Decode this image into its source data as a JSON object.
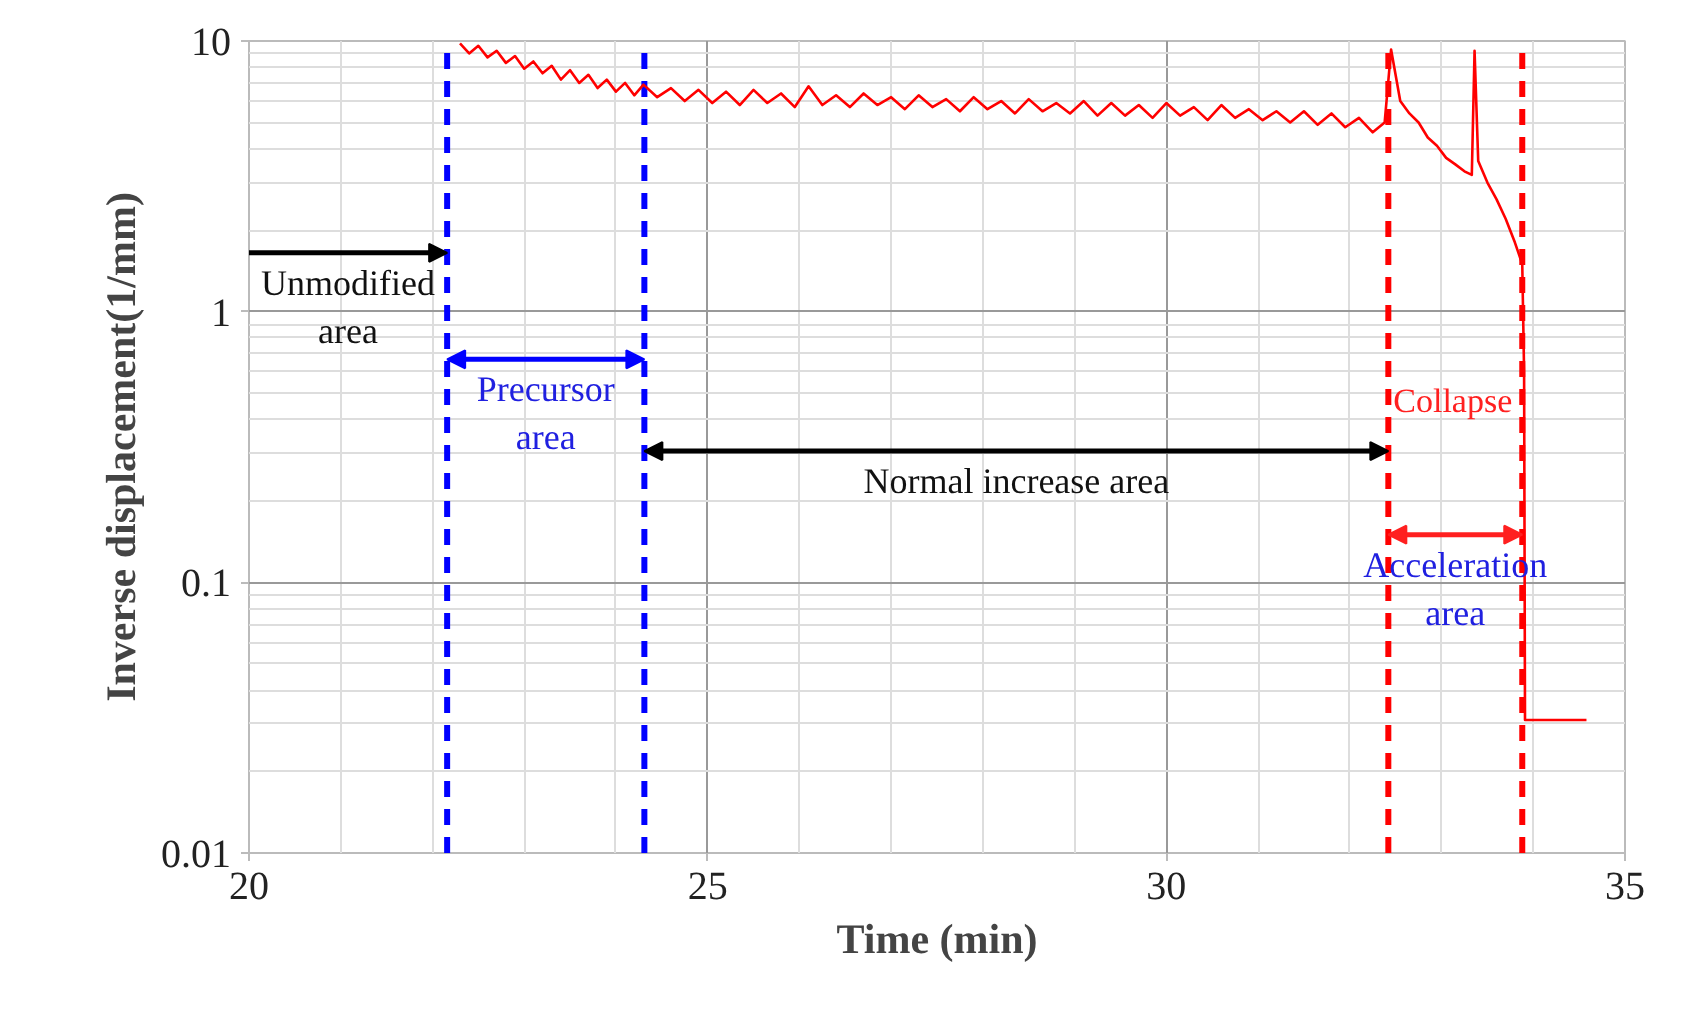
{
  "chart_data": {
    "type": "line",
    "xlabel": "Time (min)",
    "ylabel": "Inverse displacement(1/mm)",
    "log": "y",
    "grid": true,
    "marker": "none",
    "line_style": "solid",
    "xlim": [
      20,
      35
    ],
    "xticks": [
      20,
      25,
      30,
      35
    ],
    "ylim": [
      0.01,
      10
    ],
    "yticks": [
      0.01,
      0.1,
      1,
      10
    ],
    "series": [
      {
        "color": "#ff0000",
        "x": [
          22.3,
          22.4,
          22.5,
          22.6,
          22.7,
          22.8,
          22.9,
          23.0,
          23.1,
          23.2,
          23.3,
          23.4,
          23.5,
          23.6,
          23.7,
          23.8,
          23.9,
          24.0,
          24.1,
          24.2,
          24.3,
          24.45,
          24.6,
          24.75,
          24.9,
          25.05,
          25.2,
          25.35,
          25.5,
          25.65,
          25.8,
          25.95,
          26.1,
          26.25,
          26.4,
          26.55,
          26.7,
          26.85,
          27.0,
          27.15,
          27.3,
          27.45,
          27.6,
          27.75,
          27.9,
          28.05,
          28.2,
          28.35,
          28.5,
          28.65,
          28.8,
          28.95,
          29.1,
          29.25,
          29.4,
          29.55,
          29.7,
          29.85,
          30.0,
          30.15,
          30.3,
          30.45,
          30.6,
          30.75,
          30.9,
          31.05,
          31.2,
          31.35,
          31.5,
          31.65,
          31.8,
          31.95,
          32.1,
          32.25,
          32.38,
          32.45,
          32.55,
          32.65,
          32.75,
          32.85,
          32.95,
          33.05,
          33.15,
          33.25,
          33.33,
          33.36,
          33.4,
          33.5,
          33.6,
          33.7,
          33.8,
          33.88,
          33.9,
          33.91,
          34.58
        ],
        "values": [
          9.8,
          9.0,
          9.6,
          8.7,
          9.2,
          8.3,
          8.8,
          7.9,
          8.4,
          7.6,
          8.1,
          7.2,
          7.8,
          7.0,
          7.5,
          6.7,
          7.2,
          6.5,
          7.0,
          6.3,
          6.9,
          6.2,
          6.7,
          6.0,
          6.6,
          5.9,
          6.5,
          5.8,
          6.6,
          5.9,
          6.4,
          5.7,
          6.8,
          5.8,
          6.3,
          5.7,
          6.4,
          5.8,
          6.2,
          5.6,
          6.3,
          5.7,
          6.1,
          5.5,
          6.2,
          5.6,
          6.0,
          5.4,
          6.1,
          5.5,
          5.9,
          5.4,
          6.0,
          5.3,
          5.9,
          5.3,
          5.8,
          5.2,
          5.9,
          5.3,
          5.7,
          5.1,
          5.8,
          5.2,
          5.6,
          5.1,
          5.5,
          5.0,
          5.5,
          4.9,
          5.4,
          4.8,
          5.2,
          4.6,
          5.0,
          9.3,
          6.0,
          5.4,
          5.0,
          4.4,
          4.1,
          3.7,
          3.5,
          3.3,
          3.2,
          9.2,
          3.6,
          3.0,
          2.6,
          2.2,
          1.8,
          1.5,
          0.6,
          0.031,
          0.031
        ]
      }
    ],
    "ref_lines": [
      {
        "axis": "x",
        "value": 22.16,
        "color": "#0000ff",
        "line_style": "dashed"
      },
      {
        "axis": "x",
        "value": 24.31,
        "color": "#0000ff",
        "line_style": "dashed"
      },
      {
        "axis": "x",
        "value": 32.42,
        "color": "#ff0000",
        "line_style": "dashed"
      },
      {
        "axis": "x",
        "value": 33.88,
        "color": "#ff0000",
        "line_style": "dashed"
      }
    ],
    "annotations": [
      {
        "text": "Unmodified\narea",
        "x": 22.16,
        "y": 1.65
      },
      "Precursor\narea",
      "Normal increase area",
      "Acceleration\narea",
      "Collapse"
    ]
  }
}
